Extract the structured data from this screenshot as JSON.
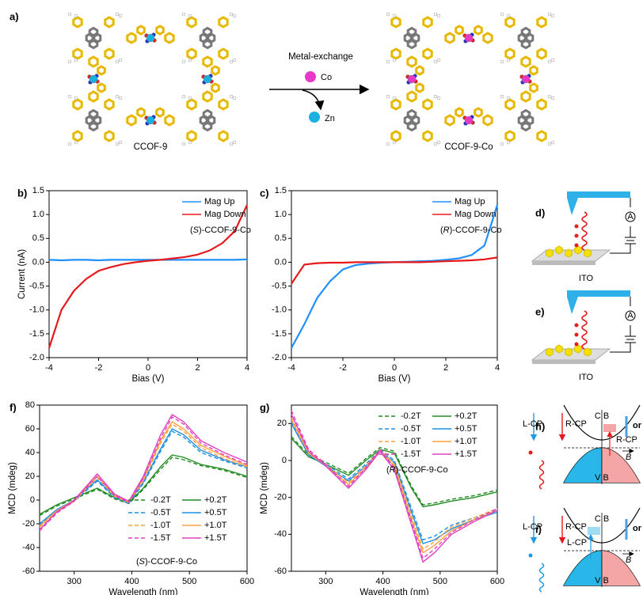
{
  "chart_data": [
    {
      "type": "line",
      "panel_label": "b)",
      "ylabel": "Current (nA)",
      "xlabel": "Bias (V)",
      "annotation": {
        "prefix": "(",
        "italic": "S",
        "suffix": ")-CCOF-9-Co"
      },
      "x": [
        -4,
        -3.5,
        -3,
        -2.5,
        -2,
        -1.5,
        -1,
        -0.5,
        0,
        0.5,
        1,
        1.5,
        2,
        2.5,
        3,
        3.5,
        4
      ],
      "series": [
        {
          "name": "Mag Up",
          "color": "#1e90ff",
          "values": [
            0.05,
            0.04,
            0.05,
            0.05,
            0.04,
            0.05,
            0.05,
            0.05,
            0.05,
            0.05,
            0.05,
            0.05,
            0.05,
            0.05,
            0.05,
            0.05,
            0.06
          ]
        },
        {
          "name": "Mag Down",
          "color": "#e8191b",
          "values": [
            -1.8,
            -1.0,
            -0.6,
            -0.35,
            -0.18,
            -0.1,
            -0.04,
            0,
            0.03,
            0.05,
            0.08,
            0.11,
            0.16,
            0.25,
            0.4,
            0.65,
            1.2
          ]
        }
      ],
      "xlim": [
        -4,
        4
      ],
      "xticks": [
        -4,
        -2,
        0,
        2,
        4
      ],
      "ylim": [
        -2,
        1.5
      ],
      "yticks": [
        {
          "value": -2,
          "label": "-2.0"
        },
        {
          "value": -1.5,
          "label": "-1.5"
        },
        {
          "value": -1,
          "label": "-1.0"
        },
        {
          "value": -0.5,
          "label": "-0.5"
        },
        {
          "value": 0,
          "label": "0.0"
        },
        {
          "value": 0.5,
          "label": "0.5"
        },
        {
          "value": 1,
          "label": "1.0"
        },
        {
          "value": 1.5,
          "label": "1.5"
        }
      ],
      "legend": "upper right"
    },
    {
      "type": "line",
      "panel_label": "c)",
      "xlabel": "Bias (V)",
      "annotation": {
        "prefix": "(",
        "italic": "R",
        "suffix": ")-CCOF-9-Co"
      },
      "x": [
        -4,
        -3.5,
        -3,
        -2.5,
        -2,
        -1.5,
        -1,
        -0.5,
        0,
        0.5,
        1,
        1.5,
        2,
        2.5,
        3,
        3.5,
        4
      ],
      "series": [
        {
          "name": "Mag Up",
          "color": "#1e90ff",
          "values": [
            -1.8,
            -1.3,
            -0.75,
            -0.4,
            -0.15,
            -0.06,
            -0.03,
            -0.01,
            0,
            0.01,
            0.02,
            0.03,
            0.05,
            0.08,
            0.15,
            0.35,
            1.2
          ]
        },
        {
          "name": "Mag Down",
          "color": "#e8191b",
          "values": [
            -0.45,
            -0.05,
            -0.02,
            -0.01,
            -0.01,
            0,
            0,
            0,
            0,
            0,
            0,
            0.01,
            0.02,
            0.03,
            0.04,
            0.06,
            0.1
          ]
        }
      ],
      "xlim": [
        -4,
        4
      ],
      "xticks": [
        -4,
        -2,
        0,
        2,
        4
      ],
      "ylim": [
        -2,
        1.5
      ],
      "yticks": [
        {
          "value": -2,
          "label": "-2.0"
        },
        {
          "value": -1.5,
          "label": "-1.5"
        },
        {
          "value": -1,
          "label": "-1.0"
        },
        {
          "value": -0.5,
          "label": "-0.5"
        },
        {
          "value": 0,
          "label": "0.0"
        },
        {
          "value": 0.5,
          "label": "0.5"
        },
        {
          "value": 1,
          "label": "1.0"
        },
        {
          "value": 1.5,
          "label": "1.5"
        }
      ],
      "legend": "upper right"
    },
    {
      "type": "line",
      "panel_label": "f)",
      "ylabel": "MCD (mdeg)",
      "xlabel": "Wavelength (nm)",
      "annotation": {
        "prefix": "(",
        "italic": "S",
        "suffix": ")-CCOF-9-Co"
      },
      "x": [
        240,
        270,
        300,
        340,
        370,
        395,
        420,
        450,
        470,
        490,
        520,
        560,
        600
      ],
      "series": [
        {
          "name": "-0.2T",
          "color": "#228b22",
          "dashed": true,
          "values": [
            -13,
            -5,
            1,
            9,
            1,
            -3,
            9,
            26,
            36,
            34,
            29,
            25,
            19
          ]
        },
        {
          "name": "+0.2T",
          "color": "#228b22",
          "values": [
            -12,
            -4,
            2,
            10,
            2,
            -2,
            10,
            28,
            38,
            36,
            30,
            26,
            20
          ]
        },
        {
          "name": "-0.5T",
          "color": "#1f8fe0",
          "dashed": true,
          "values": [
            -21,
            -9,
            -1,
            16,
            2,
            -3,
            14,
            41,
            58,
            53,
            40,
            33,
            27
          ]
        },
        {
          "name": "+0.5T",
          "color": "#1f8fe0",
          "values": [
            -20,
            -8,
            0,
            17,
            3,
            -2,
            15,
            43,
            60,
            55,
            42,
            34,
            28
          ]
        },
        {
          "name": "-1.0T",
          "color": "#ffa040",
          "dashed": true,
          "values": [
            -23,
            -10,
            -1,
            19,
            3,
            -2,
            16,
            48,
            64,
            58,
            44,
            35,
            28
          ]
        },
        {
          "name": "+1.0T",
          "color": "#ffa040",
          "values": [
            -22,
            -9,
            0,
            20,
            4,
            -1,
            18,
            50,
            66,
            60,
            46,
            37,
            29
          ]
        },
        {
          "name": "-1.5T",
          "color": "#e040c0",
          "dashed": true,
          "values": [
            -26,
            -11,
            -1,
            20,
            4,
            -2,
            18,
            52,
            70,
            64,
            48,
            38,
            30
          ]
        },
        {
          "name": "+1.5T",
          "color": "#e040c0",
          "values": [
            -25,
            -10,
            0,
            22,
            5,
            -1,
            20,
            55,
            72,
            66,
            50,
            40,
            32
          ]
        }
      ],
      "xlim": [
        240,
        600
      ],
      "xticks": [
        300,
        400,
        500,
        600
      ],
      "ylim": [
        -60,
        80
      ],
      "yticks": [
        -60,
        -40,
        -20,
        0,
        20,
        40,
        60,
        80
      ],
      "legend": "lower right",
      "legend_columns": 2
    },
    {
      "type": "line",
      "panel_label": "g)",
      "ylabel": "MCD (mdeg)",
      "xlabel": "Wavelength (nm)",
      "annotation": {
        "prefix": "(",
        "italic": "R",
        "suffix": ")-CCOF-9-Co"
      },
      "x": [
        240,
        270,
        300,
        340,
        370,
        395,
        420,
        450,
        470,
        490,
        520,
        560,
        600
      ],
      "series": [
        {
          "name": "-0.2T",
          "color": "#228b22",
          "dashed": true,
          "values": [
            13,
            3,
            -1,
            -7,
            1,
            7,
            5,
            -14,
            -24,
            -23,
            -21,
            -19,
            -16
          ]
        },
        {
          "name": "+0.2T",
          "color": "#228b22",
          "values": [
            12,
            2,
            -2,
            -8,
            0,
            6,
            4,
            -15,
            -25,
            -24,
            -22,
            -20,
            -17
          ]
        },
        {
          "name": "-0.5T",
          "color": "#1f8fe0",
          "dashed": true,
          "values": [
            21,
            4,
            -2,
            -10,
            -2,
            6,
            0,
            -26,
            -43,
            -41,
            -35,
            -31,
            -27
          ]
        },
        {
          "name": "+0.5T",
          "color": "#1f8fe0",
          "values": [
            20,
            3,
            -3,
            -11,
            -3,
            5,
            -1,
            -28,
            -45,
            -43,
            -37,
            -32,
            -28
          ]
        },
        {
          "name": "-1.0T",
          "color": "#ffa040",
          "dashed": true,
          "values": [
            23,
            5,
            -2,
            -12,
            -3,
            6,
            -2,
            -30,
            -48,
            -44,
            -36,
            -31,
            -26
          ]
        },
        {
          "name": "+1.0T",
          "color": "#ffa040",
          "values": [
            22,
            4,
            -3,
            -13,
            -4,
            5,
            -3,
            -32,
            -50,
            -46,
            -38,
            -32,
            -27
          ]
        },
        {
          "name": "-1.5T",
          "color": "#e040c0",
          "dashed": true,
          "values": [
            27,
            6,
            -2,
            -14,
            -4,
            6,
            -4,
            -33,
            -53,
            -48,
            -39,
            -32,
            -26
          ]
        },
        {
          "name": "+1.5T",
          "color": "#e040c0",
          "values": [
            25,
            5,
            -3,
            -15,
            -5,
            5,
            -5,
            -35,
            -55,
            -50,
            -40,
            -33,
            -27
          ]
        }
      ],
      "xlim": [
        240,
        600
      ],
      "xticks": [
        300,
        400,
        500,
        600
      ],
      "ylim": [
        -60,
        30
      ],
      "yticks": [
        -60,
        -40,
        -20,
        0,
        20
      ],
      "legend": "upper right",
      "legend_columns": 2
    }
  ],
  "scheme": {
    "panel_label": "a)",
    "left_label": "CCOF-9",
    "right_label": "CCOF-9-Co",
    "arrow_label": "Metal-exchange",
    "co": "Co",
    "zn": "Zn"
  },
  "setups": [
    {
      "panel_label": "d)",
      "substrate": "ITO",
      "meter": "A"
    },
    {
      "panel_label": "e)",
      "substrate": "ITO",
      "meter": "A"
    }
  ],
  "bands": [
    {
      "panel_label": "h)",
      "cb": "C B",
      "vb": "V B",
      "left_beam": "L-CP",
      "right_beam": "R-CP",
      "inner_beam": "R-CP",
      "or": "or",
      "field": "B"
    },
    {
      "panel_label": "i)",
      "cb": "C B",
      "vb": "V B",
      "left_beam": "L-CP",
      "right_beam": "R-CP",
      "inner_beam": "L-CP",
      "or": "or",
      "field": "B"
    }
  ]
}
